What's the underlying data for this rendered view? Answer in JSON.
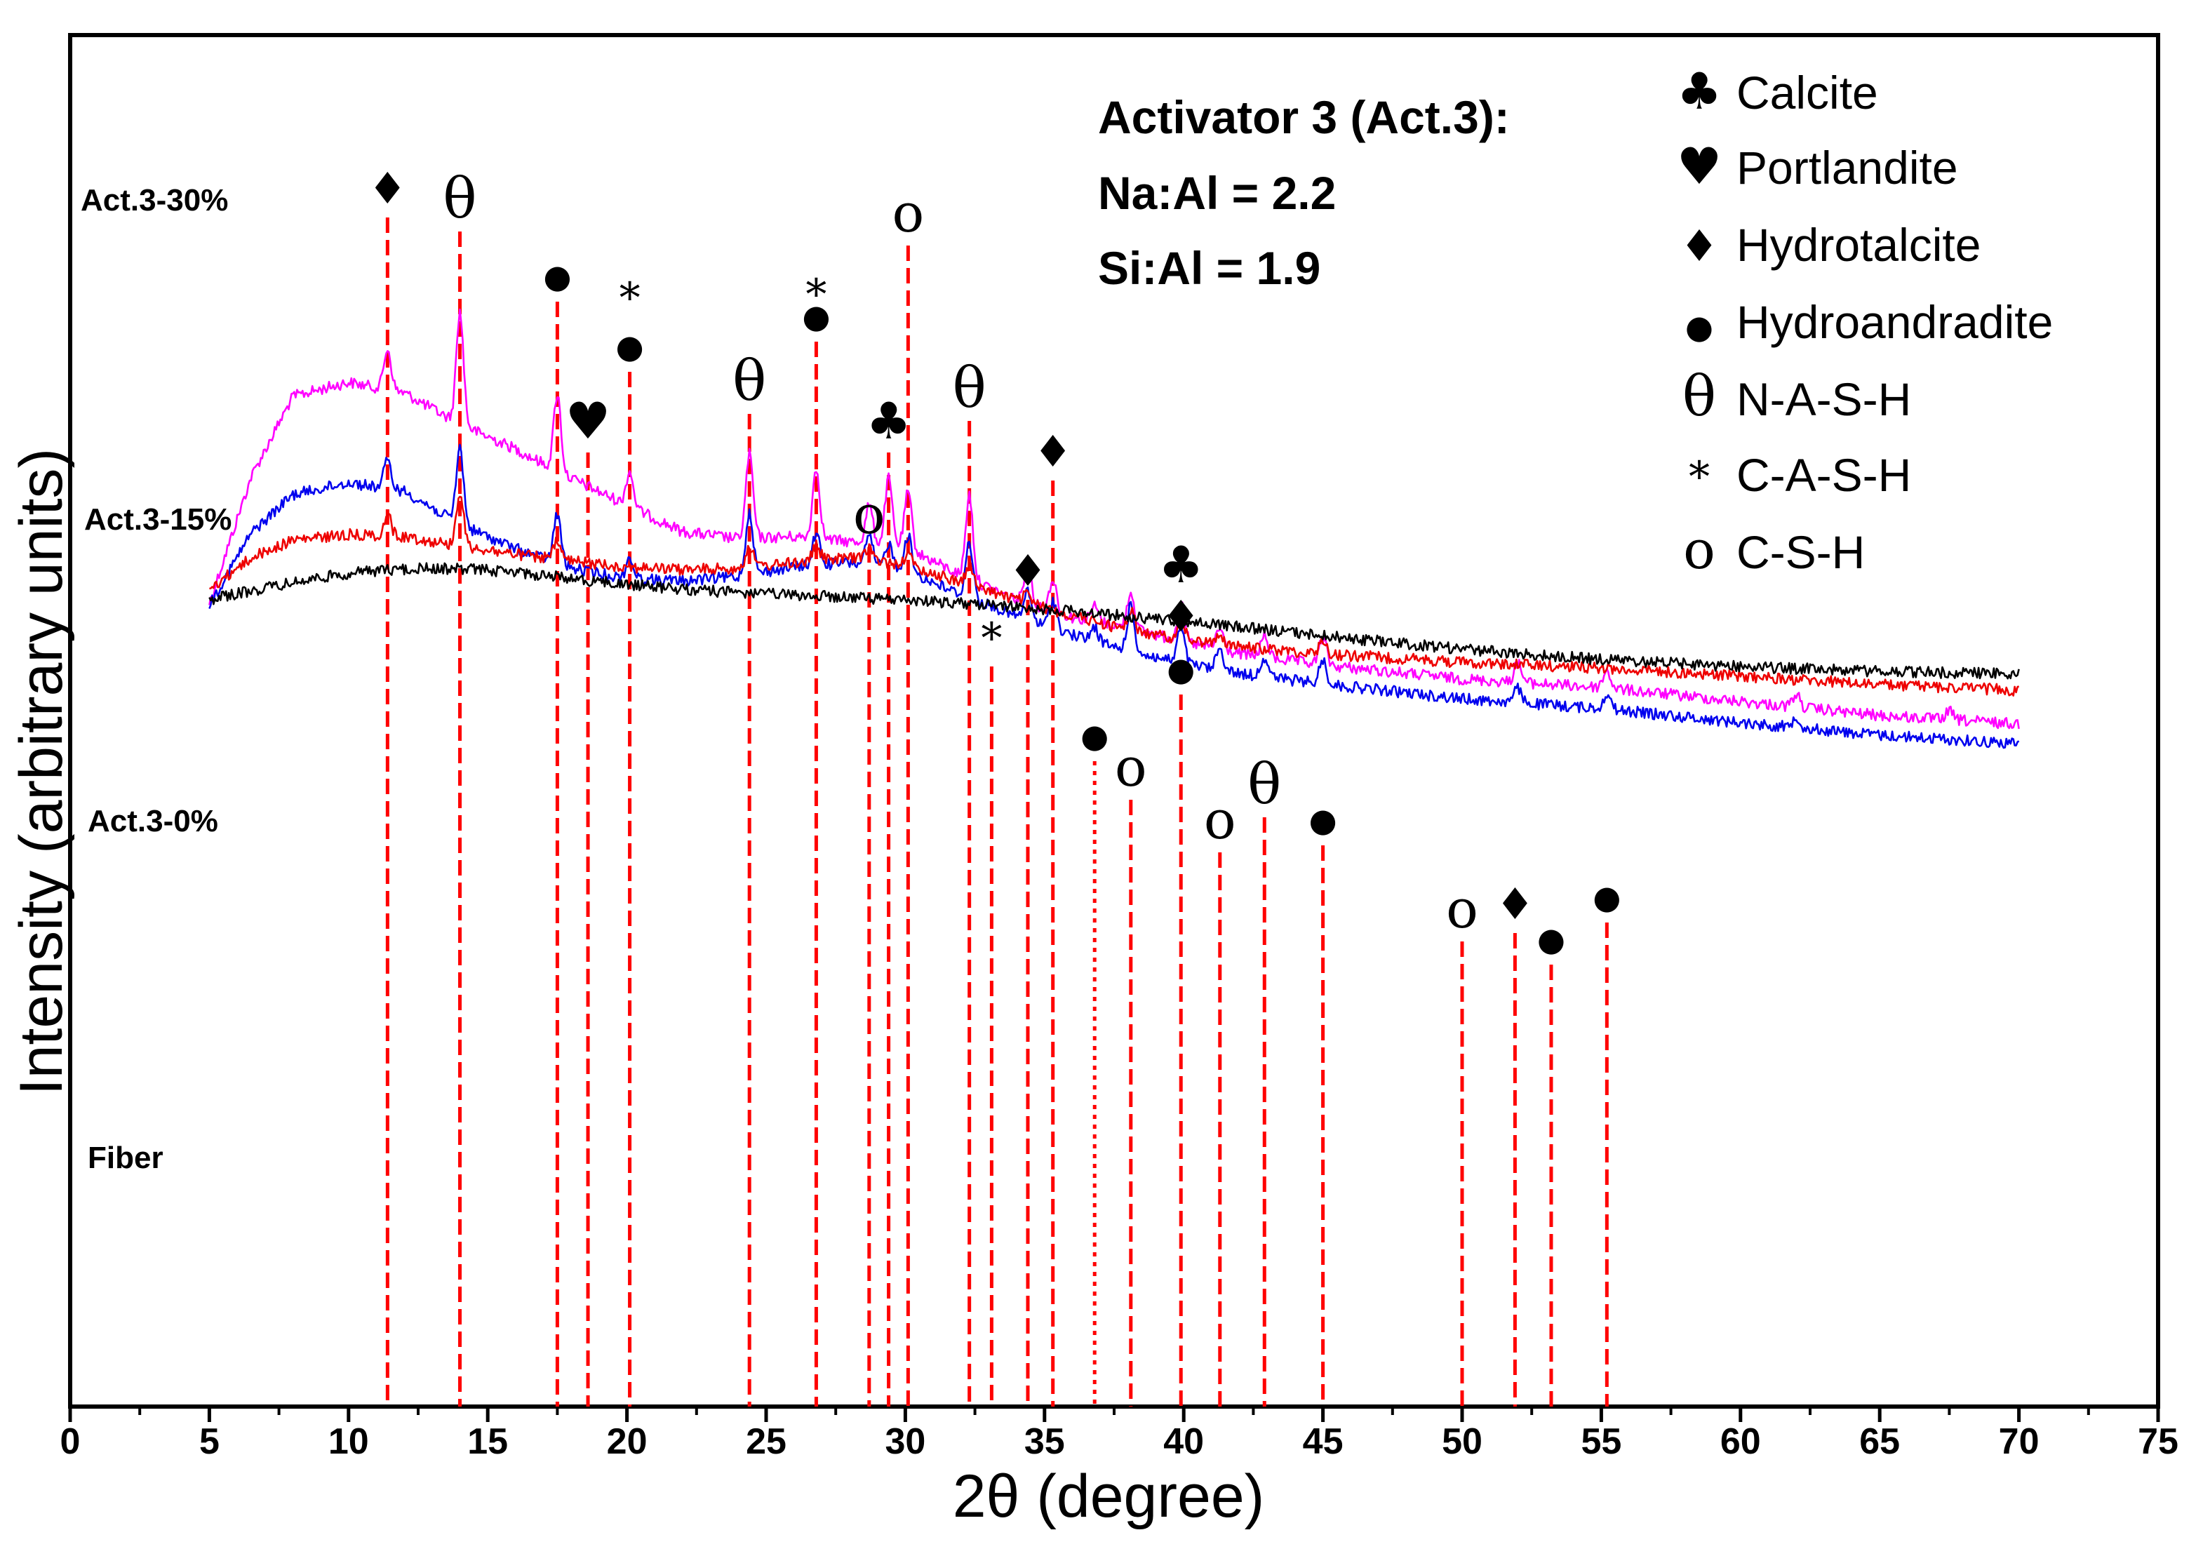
{
  "chart_data": {
    "type": "line",
    "title": "",
    "xlabel": "2θ (degree)",
    "ylabel": "Intensity (arbitrary units)",
    "xlim": [
      0,
      75
    ],
    "xticks": [
      "0",
      "5",
      "10",
      "15",
      "20",
      "25",
      "30",
      "35",
      "40",
      "45",
      "50",
      "55",
      "60",
      "65",
      "70",
      "75"
    ],
    "x_range_measured": [
      5,
      70
    ],
    "yunits": "arbitrary",
    "grid": false,
    "annotation": {
      "lines": [
        "Activator 3 (Act.3):",
        "Na:Al = 2.2",
        "Si:Al = 1.9"
      ]
    },
    "legend": {
      "position": "top-right",
      "entries": [
        {
          "symbol": "♣",
          "label": "Calcite"
        },
        {
          "symbol": "♥",
          "label": "Portlandite"
        },
        {
          "symbol": "♦",
          "label": "Hydrotalcite"
        },
        {
          "symbol": "●",
          "label": "Hydroandradite"
        },
        {
          "symbol": "θ",
          "label": "N-A-S-H"
        },
        {
          "symbol": "*",
          "label": "C-A-S-H"
        },
        {
          "symbol": "o",
          "label": "C-S-H"
        }
      ]
    },
    "series": [
      {
        "name": "Act.3-30%",
        "color": "#ff00ff",
        "baseline": [
          [
            5,
            860
          ],
          [
            6.5,
            680
          ],
          [
            8,
            565
          ],
          [
            10,
            545
          ],
          [
            12,
            560
          ],
          [
            14,
            605
          ],
          [
            16,
            640
          ],
          [
            18,
            682
          ],
          [
            20,
            720
          ],
          [
            22,
            758
          ],
          [
            24,
            768
          ],
          [
            26,
            765
          ],
          [
            28,
            772
          ],
          [
            30,
            780
          ],
          [
            32,
            820
          ],
          [
            34,
            855
          ],
          [
            36,
            880
          ],
          [
            38,
            895
          ],
          [
            40,
            915
          ],
          [
            42,
            932
          ],
          [
            45,
            948
          ],
          [
            50,
            968
          ],
          [
            55,
            980
          ],
          [
            60,
            1000
          ],
          [
            65,
            1020
          ],
          [
            70,
            1032
          ]
        ],
        "hump": null,
        "peaks": [
          [
            11.4,
            58
          ],
          [
            14.0,
            160
          ],
          [
            17.5,
            110
          ],
          [
            20.1,
            50
          ],
          [
            24.4,
            120
          ],
          [
            26.8,
            100
          ],
          [
            28.7,
            55
          ],
          [
            29.4,
            95
          ],
          [
            30.1,
            80
          ],
          [
            32.3,
            120
          ],
          [
            34.4,
            60
          ],
          [
            35.3,
            45
          ],
          [
            36.8,
            22
          ],
          [
            38.1,
            52
          ],
          [
            39.9,
            52
          ],
          [
            41.3,
            30
          ],
          [
            42.9,
            30
          ],
          [
            45.0,
            38
          ],
          [
            52.0,
            28
          ],
          [
            55.2,
            25
          ],
          [
            62.0,
            18
          ],
          [
            67.5,
            12
          ]
        ]
      },
      {
        "name": "Act.3-15%",
        "color": "#0000ee",
        "baseline": [
          [
            5,
            862
          ],
          [
            6.5,
            760
          ],
          [
            8,
            705
          ],
          [
            10,
            688
          ],
          [
            12,
            700
          ],
          [
            14,
            748
          ],
          [
            16,
            782
          ],
          [
            18,
            810
          ],
          [
            20,
            825
          ],
          [
            22,
            828
          ],
          [
            24,
            822
          ],
          [
            26,
            808
          ],
          [
            28,
            802
          ],
          [
            30,
            812
          ],
          [
            32,
            848
          ],
          [
            34,
            878
          ],
          [
            36,
            905
          ],
          [
            38,
            928
          ],
          [
            40,
            946
          ],
          [
            42,
            960
          ],
          [
            45,
            975
          ],
          [
            50,
            996
          ],
          [
            55,
            1010
          ],
          [
            60,
            1030
          ],
          [
            65,
            1048
          ],
          [
            70,
            1060
          ]
        ],
        "hump": null,
        "peaks": [
          [
            11.4,
            40
          ],
          [
            14.0,
            110
          ],
          [
            17.5,
            70
          ],
          [
            20.1,
            30
          ],
          [
            24.4,
            90
          ],
          [
            26.8,
            45
          ],
          [
            28.7,
            40
          ],
          [
            29.4,
            35
          ],
          [
            30.1,
            50
          ],
          [
            32.3,
            80
          ],
          [
            34.4,
            40
          ],
          [
            35.3,
            40
          ],
          [
            36.8,
            20
          ],
          [
            38.1,
            65
          ],
          [
            39.9,
            50
          ],
          [
            41.3,
            30
          ],
          [
            42.9,
            28
          ],
          [
            45.0,
            34
          ],
          [
            52.0,
            20
          ],
          [
            55.2,
            22
          ],
          [
            62.0,
            16
          ]
        ]
      },
      {
        "name": "Act.3-0%",
        "color": "#ee0000",
        "baseline": [
          [
            5,
            840
          ],
          [
            6.5,
            795
          ],
          [
            8,
            770
          ],
          [
            10,
            762
          ],
          [
            12,
            765
          ],
          [
            14,
            778
          ],
          [
            16,
            790
          ],
          [
            18,
            800
          ],
          [
            20,
            808
          ],
          [
            22,
            812
          ],
          [
            24,
            810
          ],
          [
            26,
            802
          ],
          [
            28,
            795
          ],
          [
            30,
            805
          ],
          [
            32,
            830
          ],
          [
            34,
            855
          ],
          [
            36,
            878
          ],
          [
            38,
            898
          ],
          [
            40,
            912
          ],
          [
            42,
            922
          ],
          [
            45,
            932
          ],
          [
            50,
            944
          ],
          [
            55,
            952
          ],
          [
            60,
            964
          ],
          [
            65,
            976
          ],
          [
            70,
            984
          ]
        ],
        "hump": null,
        "peaks": [
          [
            11.4,
            30
          ],
          [
            14.0,
            75
          ],
          [
            17.5,
            25
          ],
          [
            24.4,
            30
          ],
          [
            26.8,
            22
          ],
          [
            28.7,
            18
          ],
          [
            30.1,
            16
          ],
          [
            32.3,
            28
          ],
          [
            34.4,
            14
          ],
          [
            38.1,
            28
          ],
          [
            39.9,
            30
          ],
          [
            41.3,
            16
          ],
          [
            45.0,
            18
          ]
        ]
      },
      {
        "name": "Fiber",
        "color": "#000000",
        "baseline": [
          [
            5,
            915
          ],
          [
            10,
            915
          ],
          [
            15,
            918
          ],
          [
            20,
            925
          ],
          [
            25,
            930
          ],
          [
            30,
            935
          ],
          [
            35,
            940
          ],
          [
            40,
            945
          ],
          [
            45,
            950
          ],
          [
            50,
            955
          ],
          [
            55,
            958
          ],
          [
            60,
            960
          ],
          [
            65,
            962
          ],
          [
            70,
            963
          ]
        ],
        "hump": [
          [
            11.5,
            6,
            55
          ],
          [
            27.5,
            16,
            80
          ]
        ],
        "peaks": []
      }
    ],
    "reference_lines": [
      {
        "x": 11.4,
        "symbols": "♦",
        "style": "dashed"
      },
      {
        "x": 14.0,
        "symbols": "θ",
        "style": "dashed"
      },
      {
        "x": 17.5,
        "symbols": "●",
        "style": "dashed"
      },
      {
        "x": 18.6,
        "symbols": "♥",
        "style": "dashed"
      },
      {
        "x": 20.1,
        "symbols": "●*",
        "style": "dashed"
      },
      {
        "x": 24.4,
        "symbols": "θ",
        "style": "dashed"
      },
      {
        "x": 26.8,
        "symbols": "●*",
        "style": "dashed"
      },
      {
        "x": 28.7,
        "symbols": "o",
        "style": "dashed"
      },
      {
        "x": 29.4,
        "symbols": "♣",
        "style": "dashed"
      },
      {
        "x": 30.1,
        "symbols": "o",
        "style": "dashed"
      },
      {
        "x": 32.3,
        "symbols": "θ",
        "style": "dashed"
      },
      {
        "x": 33.1,
        "symbols": "*",
        "style": "dashed"
      },
      {
        "x": 34.4,
        "symbols": "♦",
        "style": "dashed"
      },
      {
        "x": 35.3,
        "symbols": "♦",
        "style": "dashed"
      },
      {
        "x": 36.8,
        "symbols": "●",
        "style": "dotted"
      },
      {
        "x": 38.1,
        "symbols": "o",
        "style": "dashed"
      },
      {
        "x": 39.9,
        "symbols": "♣♦●",
        "style": "dashed"
      },
      {
        "x": 41.3,
        "symbols": "o",
        "style": "dashed"
      },
      {
        "x": 42.9,
        "symbols": "θ",
        "style": "dashed"
      },
      {
        "x": 45.0,
        "symbols": "●",
        "style": "dashed"
      },
      {
        "x": 50.0,
        "symbols": "o",
        "style": "dashed"
      },
      {
        "x": 51.9,
        "symbols": "♦",
        "style": "dashed"
      },
      {
        "x": 53.2,
        "symbols": "●",
        "style": "dashed"
      },
      {
        "x": 55.2,
        "symbols": "●",
        "style": "dashed"
      }
    ]
  }
}
